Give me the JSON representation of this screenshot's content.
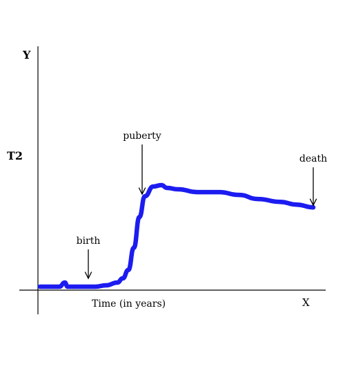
{
  "chart_data": {
    "type": "line",
    "title": "",
    "xlabel": "Time (in years)",
    "x_axis_letter": "X",
    "y_axis_letter": "Y",
    "y_tick_labels": [
      "T2"
    ],
    "grid": false,
    "legend": "none",
    "series": [
      {
        "color": "#1c1cf0",
        "points": [
          [
            0.0,
            0.0
          ],
          [
            0.04,
            0.0
          ],
          [
            0.07,
            0.0
          ],
          [
            0.09,
            0.03
          ],
          [
            0.1,
            0.0
          ],
          [
            0.15,
            0.0
          ],
          [
            0.2,
            0.0
          ],
          [
            0.24,
            0.01
          ],
          [
            0.28,
            0.03
          ],
          [
            0.3,
            0.06
          ],
          [
            0.32,
            0.12
          ],
          [
            0.34,
            0.28
          ],
          [
            0.36,
            0.5
          ],
          [
            0.38,
            0.65
          ],
          [
            0.41,
            0.72
          ],
          [
            0.44,
            0.73
          ],
          [
            0.46,
            0.71
          ],
          [
            0.5,
            0.7
          ],
          [
            0.57,
            0.68
          ],
          [
            0.65,
            0.68
          ],
          [
            0.72,
            0.66
          ],
          [
            0.79,
            0.63
          ],
          [
            0.87,
            0.61
          ],
          [
            0.93,
            0.59
          ],
          [
            0.99,
            0.57
          ]
        ]
      }
    ],
    "annotations": [
      {
        "label": "birth",
        "x": 0.175,
        "y": 0.0
      },
      {
        "label": "puberty",
        "x": 0.37,
        "y": 0.65
      },
      {
        "label": "death",
        "x": 0.99,
        "y": 0.57
      }
    ]
  }
}
